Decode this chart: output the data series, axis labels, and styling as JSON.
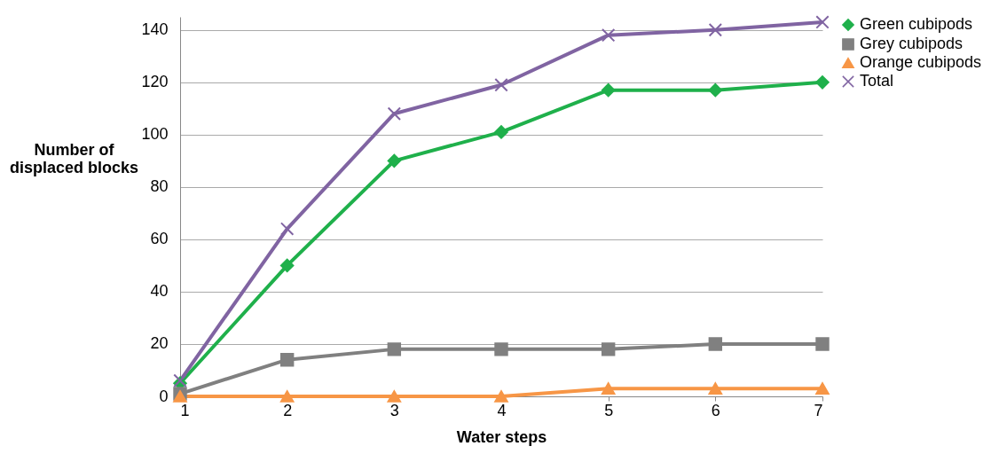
{
  "chart_data": {
    "type": "line",
    "xlabel": "Water steps",
    "ylabel": "Number of\ndisplaced blocks",
    "x": [
      1,
      2,
      3,
      4,
      5,
      6,
      7
    ],
    "xlim": [
      1,
      7
    ],
    "xticks": [
      1,
      2,
      3,
      4,
      5,
      6,
      7
    ],
    "ylim": [
      0,
      145
    ],
    "yticks": [
      0,
      20,
      40,
      60,
      80,
      100,
      120,
      140
    ],
    "grid": "y",
    "legend": "right",
    "line_style": "solid",
    "series": [
      {
        "name": "Green cubipods",
        "color": "#1fb04b",
        "marker": "diamond",
        "values": [
          5,
          50,
          90,
          101,
          117,
          117,
          120
        ]
      },
      {
        "name": "Grey cubipods",
        "color": "#808080",
        "marker": "square",
        "values": [
          1,
          14,
          18,
          18,
          18,
          20,
          20
        ]
      },
      {
        "name": "Orange cubipods",
        "color": "#f79646",
        "marker": "triangle",
        "values": [
          0,
          0,
          0,
          0,
          3,
          3,
          3
        ]
      },
      {
        "name": "Total",
        "color": "#8064a2",
        "marker": "cross",
        "values": [
          6,
          64,
          108,
          119,
          138,
          140,
          143
        ]
      }
    ]
  }
}
